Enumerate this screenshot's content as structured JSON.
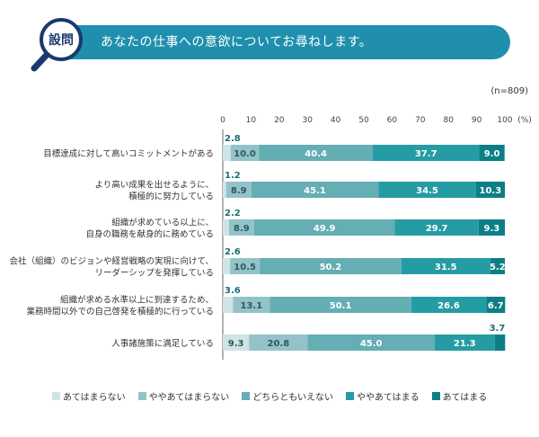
{
  "header": {
    "badge": "設問",
    "question": "あなたの仕事への意欲についてお尋ねします。",
    "sample_size": "(n=809)"
  },
  "colors": [
    "#cfe4e6",
    "#93c3c8",
    "#64aeb4",
    "#259ca4",
    "#0c7f86"
  ],
  "chart_data": {
    "type": "bar",
    "orientation": "horizontal-stacked",
    "x_ticks": [
      "0",
      "10",
      "20",
      "30",
      "40",
      "50",
      "60",
      "70",
      "80",
      "90",
      "100"
    ],
    "x_unit": "(%)",
    "xlim": [
      0,
      100
    ],
    "categories": [
      [
        "目標達成に対して高いコミットメントがある"
      ],
      [
        "より高い成果を出せるように、",
        "積極的に努力している"
      ],
      [
        "組織が求めている以上に、",
        "自身の職務を献身的に務めている"
      ],
      [
        "会社（組織）のビジョンや経営戦略の実現に向けて、",
        "リーダーシップを発揮している"
      ],
      [
        "組織が求める水準以上に到達するため、",
        "業務時間以外での自己啓発を積極的に行っている"
      ],
      [
        "人事諸施策に満足している"
      ]
    ],
    "series": [
      {
        "name": "あてはまらない",
        "values": [
          2.8,
          1.2,
          2.2,
          2.6,
          3.6,
          9.3
        ]
      },
      {
        "name": "ややあてはまらない",
        "values": [
          10.0,
          8.9,
          8.9,
          10.5,
          13.1,
          20.8
        ]
      },
      {
        "name": "どちらともいえない",
        "values": [
          40.4,
          45.1,
          49.9,
          50.2,
          50.1,
          45.0
        ]
      },
      {
        "name": "ややあてはまる",
        "values": [
          37.7,
          34.5,
          29.7,
          31.5,
          26.6,
          21.3
        ]
      },
      {
        "name": "あてはまる",
        "values": [
          9.0,
          10.3,
          9.3,
          5.2,
          6.7,
          3.7
        ]
      }
    ],
    "labels": [
      [
        "2.8",
        "10.0",
        "40.4",
        "37.7",
        "9.0"
      ],
      [
        "1.2",
        "8.9",
        "45.1",
        "34.5",
        "10.3"
      ],
      [
        "2.2",
        "8.9",
        "49.9",
        "29.7",
        "9.3"
      ],
      [
        "2.6",
        "10.5",
        "50.2",
        "31.5",
        "5.2"
      ],
      [
        "3.6",
        "13.1",
        "50.1",
        "26.6",
        "6.7"
      ],
      [
        "9.3",
        "20.8",
        "45.0",
        "21.3",
        "3.7"
      ]
    ],
    "legend_position": "bottom"
  }
}
